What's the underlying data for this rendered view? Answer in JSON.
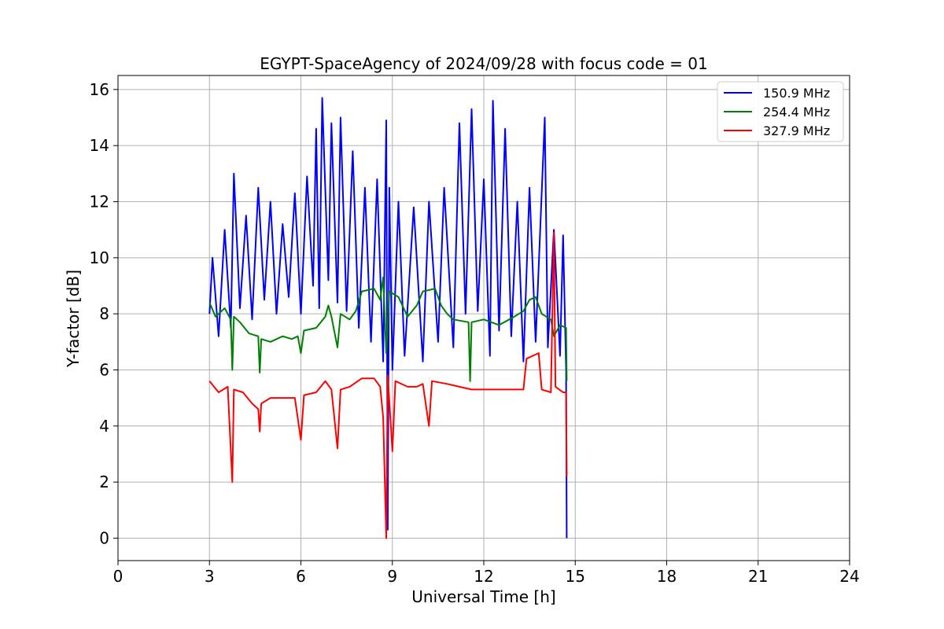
{
  "chart_data": {
    "type": "line",
    "title": "EGYPT-SpaceAgency of 2024/09/28 with focus code = 01",
    "xlabel": "Universal Time [h]",
    "ylabel": "Y-factor [dB]",
    "xlim": [
      0,
      24
    ],
    "ylim": [
      -0.8,
      16.5
    ],
    "xticks": [
      0,
      3,
      6,
      9,
      12,
      15,
      18,
      21,
      24
    ],
    "yticks": [
      0,
      2,
      4,
      6,
      8,
      10,
      12,
      14,
      16
    ],
    "grid": true,
    "legend_position": "top-right",
    "series": [
      {
        "name": "150.9 MHz",
        "color": "#0000ff",
        "points": [
          [
            3.0,
            8.0
          ],
          [
            3.1,
            10.0
          ],
          [
            3.3,
            7.2
          ],
          [
            3.5,
            11.0
          ],
          [
            3.7,
            7.5
          ],
          [
            3.8,
            13.0
          ],
          [
            4.0,
            8.2
          ],
          [
            4.2,
            11.5
          ],
          [
            4.4,
            7.8
          ],
          [
            4.6,
            12.5
          ],
          [
            4.8,
            8.5
          ],
          [
            5.0,
            12.0
          ],
          [
            5.2,
            8.0
          ],
          [
            5.4,
            11.2
          ],
          [
            5.6,
            8.6
          ],
          [
            5.8,
            12.3
          ],
          [
            6.0,
            8.0
          ],
          [
            6.2,
            12.9
          ],
          [
            6.4,
            9.0
          ],
          [
            6.5,
            14.6
          ],
          [
            6.6,
            8.2
          ],
          [
            6.7,
            15.7
          ],
          [
            6.9,
            9.2
          ],
          [
            7.0,
            14.8
          ],
          [
            7.2,
            8.4
          ],
          [
            7.3,
            15.0
          ],
          [
            7.5,
            8.1
          ],
          [
            7.7,
            13.8
          ],
          [
            7.9,
            7.5
          ],
          [
            8.1,
            12.5
          ],
          [
            8.3,
            7.0
          ],
          [
            8.5,
            12.8
          ],
          [
            8.7,
            6.3
          ],
          [
            8.8,
            14.9
          ],
          [
            8.85,
            0.3
          ],
          [
            8.9,
            12.5
          ],
          [
            9.0,
            6.0
          ],
          [
            9.2,
            12.0
          ],
          [
            9.4,
            6.5
          ],
          [
            9.7,
            11.8
          ],
          [
            10.0,
            6.3
          ],
          [
            10.2,
            12.0
          ],
          [
            10.5,
            7.0
          ],
          [
            10.7,
            12.5
          ],
          [
            11.0,
            6.8
          ],
          [
            11.2,
            14.8
          ],
          [
            11.4,
            8.0
          ],
          [
            11.6,
            15.3
          ],
          [
            11.8,
            8.1
          ],
          [
            12.0,
            12.8
          ],
          [
            12.2,
            6.5
          ],
          [
            12.3,
            15.6
          ],
          [
            12.5,
            7.4
          ],
          [
            12.7,
            14.6
          ],
          [
            12.9,
            7.2
          ],
          [
            13.1,
            12.0
          ],
          [
            13.3,
            6.3
          ],
          [
            13.5,
            12.5
          ],
          [
            13.7,
            7.0
          ],
          [
            14.0,
            15.0
          ],
          [
            14.1,
            6.8
          ],
          [
            14.3,
            11.0
          ],
          [
            14.5,
            6.5
          ],
          [
            14.6,
            10.8
          ],
          [
            14.7,
            6.0
          ],
          [
            14.72,
            0.0
          ]
        ]
      },
      {
        "name": "254.4 MHz",
        "color": "#008000",
        "points": [
          [
            3.0,
            8.4
          ],
          [
            3.2,
            7.9
          ],
          [
            3.5,
            8.2
          ],
          [
            3.7,
            7.8
          ],
          [
            3.75,
            6.0
          ],
          [
            3.8,
            7.9
          ],
          [
            4.0,
            7.7
          ],
          [
            4.3,
            7.3
          ],
          [
            4.6,
            7.2
          ],
          [
            4.65,
            5.9
          ],
          [
            4.7,
            7.1
          ],
          [
            5.0,
            7.0
          ],
          [
            5.4,
            7.2
          ],
          [
            5.7,
            7.1
          ],
          [
            5.9,
            7.2
          ],
          [
            6.0,
            6.6
          ],
          [
            6.1,
            7.4
          ],
          [
            6.5,
            7.5
          ],
          [
            6.8,
            7.9
          ],
          [
            6.9,
            8.3
          ],
          [
            7.0,
            7.9
          ],
          [
            7.2,
            6.8
          ],
          [
            7.3,
            8.0
          ],
          [
            7.6,
            7.8
          ],
          [
            7.8,
            8.1
          ],
          [
            8.0,
            8.8
          ],
          [
            8.4,
            8.9
          ],
          [
            8.6,
            8.5
          ],
          [
            8.7,
            9.3
          ],
          [
            8.8,
            6.6
          ],
          [
            8.9,
            8.8
          ],
          [
            9.2,
            8.6
          ],
          [
            9.5,
            7.9
          ],
          [
            9.8,
            8.3
          ],
          [
            10.0,
            8.8
          ],
          [
            10.4,
            8.9
          ],
          [
            10.6,
            8.3
          ],
          [
            10.8,
            8.0
          ],
          [
            11.0,
            7.8
          ],
          [
            11.5,
            7.7
          ],
          [
            11.55,
            5.6
          ],
          [
            11.6,
            7.7
          ],
          [
            12.0,
            7.8
          ],
          [
            12.5,
            7.6
          ],
          [
            13.0,
            7.9
          ],
          [
            13.3,
            8.1
          ],
          [
            13.5,
            8.5
          ],
          [
            13.7,
            8.6
          ],
          [
            13.9,
            8.0
          ],
          [
            14.2,
            7.8
          ],
          [
            14.3,
            7.2
          ],
          [
            14.5,
            7.6
          ],
          [
            14.7,
            7.5
          ],
          [
            14.72,
            5.6
          ]
        ]
      },
      {
        "name": "327.9 MHz",
        "color": "#ff0000",
        "points": [
          [
            3.0,
            5.6
          ],
          [
            3.3,
            5.2
          ],
          [
            3.6,
            5.4
          ],
          [
            3.75,
            2.0
          ],
          [
            3.8,
            5.3
          ],
          [
            4.1,
            5.2
          ],
          [
            4.4,
            4.8
          ],
          [
            4.6,
            4.6
          ],
          [
            4.65,
            3.8
          ],
          [
            4.7,
            4.8
          ],
          [
            5.0,
            5.0
          ],
          [
            5.5,
            5.0
          ],
          [
            5.8,
            5.0
          ],
          [
            6.0,
            3.5
          ],
          [
            6.1,
            5.1
          ],
          [
            6.5,
            5.2
          ],
          [
            6.8,
            5.6
          ],
          [
            7.0,
            5.3
          ],
          [
            7.2,
            3.2
          ],
          [
            7.3,
            5.3
          ],
          [
            7.6,
            5.4
          ],
          [
            8.0,
            5.7
          ],
          [
            8.4,
            5.7
          ],
          [
            8.6,
            5.4
          ],
          [
            8.7,
            4.3
          ],
          [
            8.8,
            0.0
          ],
          [
            8.85,
            5.8
          ],
          [
            9.0,
            3.1
          ],
          [
            9.1,
            5.6
          ],
          [
            9.5,
            5.4
          ],
          [
            9.8,
            5.4
          ],
          [
            10.0,
            5.5
          ],
          [
            10.2,
            4.0
          ],
          [
            10.3,
            5.6
          ],
          [
            10.8,
            5.5
          ],
          [
            11.2,
            5.4
          ],
          [
            11.6,
            5.3
          ],
          [
            12.0,
            5.3
          ],
          [
            12.5,
            5.3
          ],
          [
            13.0,
            5.3
          ],
          [
            13.3,
            5.3
          ],
          [
            13.4,
            6.4
          ],
          [
            13.8,
            6.6
          ],
          [
            13.9,
            5.3
          ],
          [
            14.2,
            5.2
          ],
          [
            14.3,
            10.9
          ],
          [
            14.35,
            5.4
          ],
          [
            14.6,
            5.2
          ],
          [
            14.7,
            5.2
          ],
          [
            14.72,
            2.2
          ]
        ]
      }
    ]
  }
}
